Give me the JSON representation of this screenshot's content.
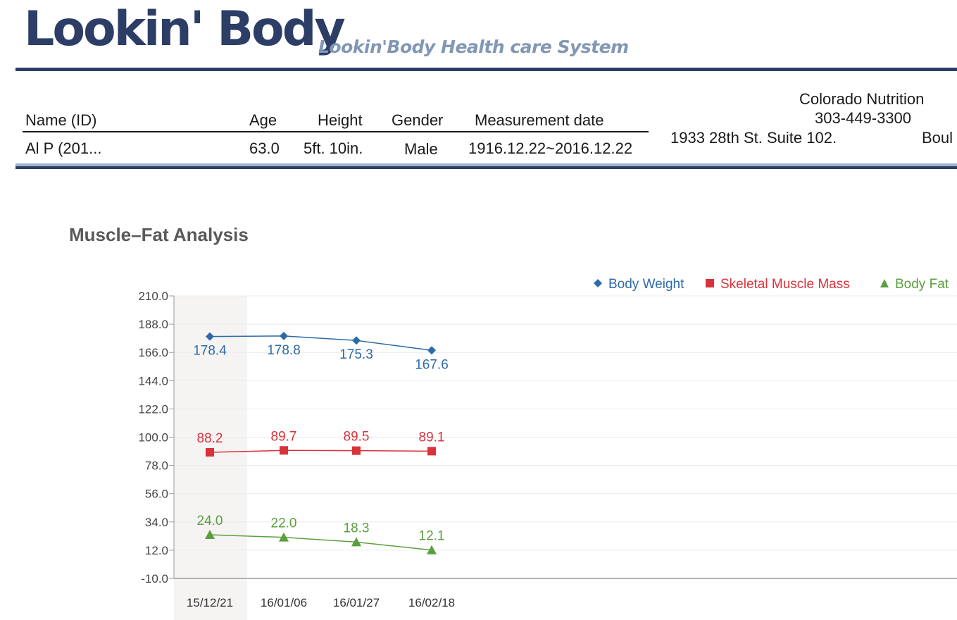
{
  "header": {
    "logo": "Lookin' Body",
    "subtitle": "Lookin'Body Health care System"
  },
  "profile": {
    "labels": {
      "name": "Name (ID)",
      "age": "Age",
      "height": "Height",
      "gender": "Gender",
      "date": "Measurement date"
    },
    "values": {
      "name": "Al P      (201...",
      "age": "63.0",
      "height": "5ft. 10in.",
      "gender": "Male",
      "date": "1916.12.22~2016.12.22"
    }
  },
  "facility": {
    "name": "Colorado Nutrition",
    "phone": "303-449-3300",
    "address": "1933 28th St. Suite 102.",
    "city": "Boul"
  },
  "section": {
    "title": "Muscle–Fat Analysis"
  },
  "chart_data": {
    "type": "line",
    "title": "Muscle–Fat Analysis",
    "x": [
      "15/12/21",
      "16/01/06",
      "16/01/27",
      "16/02/18"
    ],
    "yticks": [
      "210.0",
      "188.0",
      "166.0",
      "144.0",
      "122.0",
      "100.0",
      "78.0",
      "56.0",
      "34.0",
      "12.0",
      "-10.0"
    ],
    "ylim": [
      -10,
      210
    ],
    "grid": true,
    "legend": "top-right",
    "series": [
      {
        "name": "Body Weight",
        "values": [
          178.4,
          178.8,
          175.3,
          167.6
        ],
        "labels": [
          "178.4",
          "178.8",
          "175.3",
          "167.6"
        ],
        "color": "#2e6aa8",
        "marker": "diamond",
        "label_pos": "below"
      },
      {
        "name": "Skeletal Muscle Mass",
        "values": [
          88.2,
          89.7,
          89.5,
          89.1
        ],
        "labels": [
          "88.2",
          "89.7",
          "89.5",
          "89.1"
        ],
        "color": "#d9323b",
        "marker": "square",
        "label_pos": "above"
      },
      {
        "name": "Body Fat",
        "values": [
          24.0,
          22.0,
          18.3,
          12.1
        ],
        "labels": [
          "24.0",
          "22.0",
          "18.3",
          "12.1"
        ],
        "color": "#5aa03e",
        "marker": "triangle",
        "label_pos": "above"
      }
    ],
    "highlight_column": 0
  }
}
